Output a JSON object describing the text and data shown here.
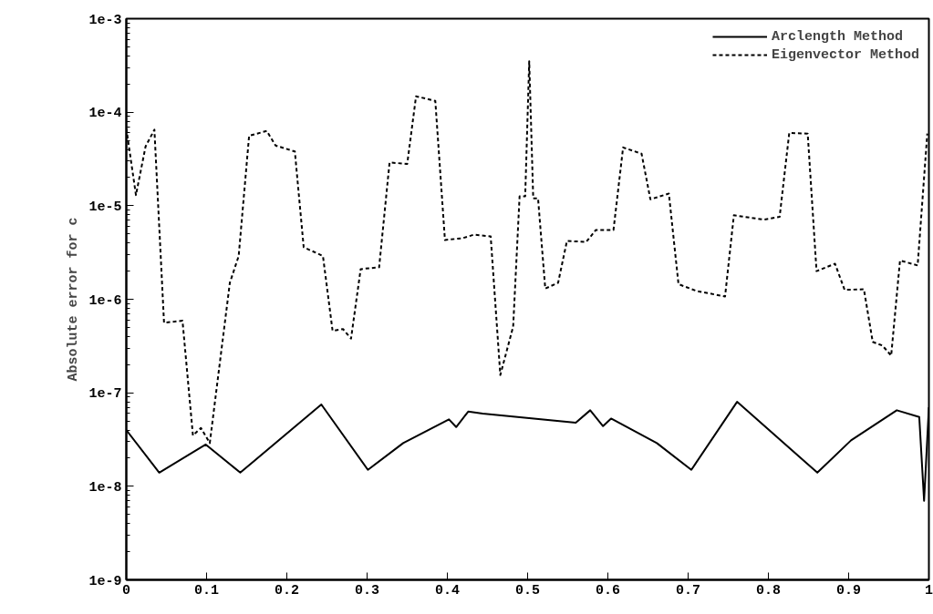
{
  "chart_data": {
    "type": "line",
    "ylabel": "Absolute error for c",
    "log": "y",
    "grid": false,
    "legend": "top right",
    "marker": "none",
    "xlim": [
      0,
      1
    ],
    "ylim": [
      1e-09,
      0.001
    ],
    "xticks": [
      0,
      0.1,
      0.2,
      0.3,
      0.4,
      0.5,
      0.6,
      0.7,
      0.8,
      0.9,
      1
    ],
    "yticks": [
      {
        "value": 1e-09,
        "label": "1e-9"
      },
      {
        "value": 1e-08,
        "label": "1e-8"
      },
      {
        "value": 1e-07,
        "label": "1e-7"
      },
      {
        "value": 1e-06,
        "label": "1e-6"
      },
      {
        "value": 1e-05,
        "label": "1e-5"
      },
      {
        "value": 0.0001,
        "label": "1e-4"
      },
      {
        "value": 0.001,
        "label": "1e-3"
      }
    ],
    "series": [
      {
        "name": "Arclength Method",
        "color": "#000000",
        "line_style": "solid",
        "x": [
          0,
          0.041,
          0.099,
          0.142,
          0.243,
          0.301,
          0.345,
          0.402,
          0.411,
          0.426,
          0.444,
          0.56,
          0.578,
          0.594,
          0.604,
          0.661,
          0.704,
          0.761,
          0.861,
          0.903,
          0.96,
          0.988,
          0.994,
          1
        ],
        "values": [
          4e-08,
          1.4e-08,
          2.8e-08,
          1.4e-08,
          7.5e-08,
          1.5e-08,
          2.9e-08,
          5.2e-08,
          4.3e-08,
          6.3e-08,
          6e-08,
          4.8e-08,
          6.5e-08,
          4.4e-08,
          5.3e-08,
          2.9e-08,
          1.5e-08,
          8e-08,
          1.4e-08,
          3.1e-08,
          6.5e-08,
          5.5e-08,
          7e-09,
          7e-08
        ]
      },
      {
        "name": "Eigenvector Method",
        "color": "#000000",
        "line_style": "dashed",
        "x": [
          0,
          0.012,
          0.024,
          0.035,
          0.047,
          0.07,
          0.083,
          0.093,
          0.104,
          0.129,
          0.14,
          0.153,
          0.175,
          0.186,
          0.21,
          0.221,
          0.245,
          0.257,
          0.27,
          0.28,
          0.292,
          0.315,
          0.328,
          0.35,
          0.361,
          0.385,
          0.397,
          0.419,
          0.433,
          0.454,
          0.466,
          0.482,
          0.49,
          0.497,
          0.502,
          0.507,
          0.513,
          0.522,
          0.538,
          0.549,
          0.573,
          0.585,
          0.607,
          0.619,
          0.642,
          0.653,
          0.676,
          0.688,
          0.71,
          0.746,
          0.757,
          0.794,
          0.814,
          0.826,
          0.849,
          0.86,
          0.883,
          0.895,
          0.919,
          0.93,
          0.942,
          0.953,
          0.964,
          0.986,
          0.998
        ],
        "values": [
          6.7e-05,
          1.3e-05,
          4.3e-05,
          6.5e-05,
          5.6e-07,
          5.9e-07,
          3.5e-08,
          4.2e-08,
          2.9e-08,
          1.5e-06,
          2.9e-06,
          5.6e-05,
          6.3e-05,
          4.4e-05,
          3.8e-05,
          3.6e-06,
          2.9e-06,
          4.6e-07,
          4.8e-07,
          3.8e-07,
          2.1e-06,
          2.2e-06,
          2.9e-05,
          2.8e-05,
          0.000148,
          0.000132,
          4.3e-06,
          4.5e-06,
          4.9e-06,
          4.7e-06,
          1.55e-07,
          5.1e-07,
          1.26e-05,
          1.26e-05,
          0.00035,
          1.2e-05,
          1.2e-05,
          1.3e-06,
          1.5e-06,
          4.2e-06,
          4.1e-06,
          5.5e-06,
          5.5e-06,
          4.2e-05,
          3.6e-05,
          1.17e-05,
          1.35e-05,
          1.45e-06,
          1.23e-06,
          1.07e-06,
          7.9e-06,
          7.1e-06,
          7.6e-06,
          6e-05,
          5.9e-05,
          2e-06,
          2.4e-06,
          1.26e-06,
          1.28e-06,
          3.5e-07,
          3.2e-07,
          2.5e-07,
          2.6e-06,
          2.3e-06,
          5.9e-05
        ]
      }
    ]
  }
}
